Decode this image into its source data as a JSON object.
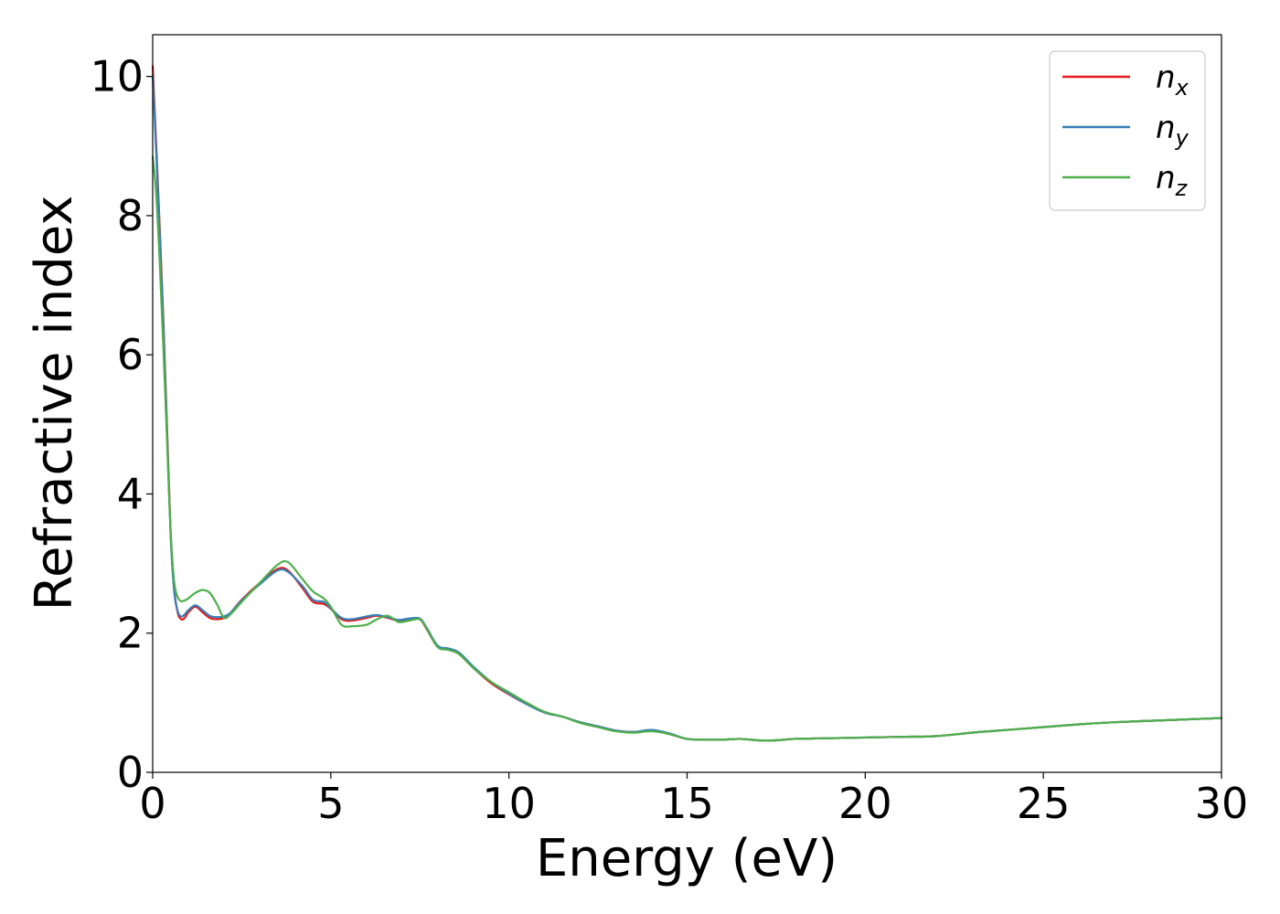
{
  "chart_data": {
    "type": "line",
    "xlabel": "Energy (eV)",
    "ylabel": "Refractive index",
    "xlim": [
      0,
      30
    ],
    "ylim": [
      0,
      10.6
    ],
    "xticks": [
      0,
      5,
      10,
      15,
      20,
      25,
      30
    ],
    "yticks": [
      0,
      2,
      4,
      6,
      8,
      10
    ],
    "grid": false,
    "legend_position": "top-right",
    "series": [
      {
        "name": "n",
        "subscript": "x",
        "color": "#e41a1c",
        "x": [
          0,
          0.1,
          0.2,
          0.3,
          0.4,
          0.5,
          0.6,
          0.7,
          0.8,
          0.9,
          1.0,
          1.2,
          1.4,
          1.6,
          1.8,
          2.0,
          2.2,
          2.5,
          3.0,
          3.5,
          3.8,
          4.2,
          4.5,
          4.8,
          5.0,
          5.3,
          5.6,
          6.0,
          6.3,
          6.6,
          6.9,
          7.2,
          7.5,
          7.7,
          8.0,
          8.3,
          8.6,
          9.0,
          9.5,
          10.0,
          10.5,
          11.0,
          11.5,
          12.0,
          12.5,
          13.0,
          13.5,
          14.0,
          14.5,
          15.0,
          15.5,
          16.0,
          16.5,
          17.0,
          17.5,
          18.0,
          19.0,
          20.0,
          21.0,
          22.0,
          23.0,
          24.0,
          25.0,
          26.0,
          27.0,
          28.0,
          29.0,
          30.0
        ],
        "y": [
          10.15,
          9.0,
          7.8,
          6.5,
          5.0,
          3.5,
          2.65,
          2.3,
          2.2,
          2.22,
          2.3,
          2.38,
          2.3,
          2.22,
          2.2,
          2.22,
          2.3,
          2.48,
          2.72,
          2.92,
          2.9,
          2.65,
          2.45,
          2.42,
          2.35,
          2.2,
          2.18,
          2.22,
          2.25,
          2.22,
          2.18,
          2.2,
          2.2,
          2.05,
          1.8,
          1.76,
          1.7,
          1.5,
          1.28,
          1.12,
          0.98,
          0.86,
          0.8,
          0.72,
          0.66,
          0.6,
          0.58,
          0.6,
          0.55,
          0.48,
          0.47,
          0.47,
          0.48,
          0.46,
          0.46,
          0.48,
          0.49,
          0.5,
          0.51,
          0.52,
          0.57,
          0.61,
          0.65,
          0.69,
          0.72,
          0.74,
          0.76,
          0.78
        ]
      },
      {
        "name": "n",
        "subscript": "y",
        "color": "#377eb8",
        "x": [
          0,
          0.1,
          0.2,
          0.3,
          0.4,
          0.5,
          0.6,
          0.7,
          0.8,
          0.9,
          1.0,
          1.2,
          1.4,
          1.6,
          1.8,
          2.0,
          2.2,
          2.5,
          3.0,
          3.5,
          3.8,
          4.2,
          4.5,
          4.8,
          5.0,
          5.3,
          5.6,
          6.0,
          6.3,
          6.6,
          6.9,
          7.2,
          7.5,
          7.7,
          8.0,
          8.3,
          8.6,
          9.0,
          9.5,
          10.0,
          10.5,
          11.0,
          11.5,
          12.0,
          12.5,
          13.0,
          13.5,
          14.0,
          14.5,
          15.0,
          15.5,
          16.0,
          16.5,
          17.0,
          17.5,
          18.0,
          19.0,
          20.0,
          21.0,
          22.0,
          23.0,
          24.0,
          25.0,
          26.0,
          27.0,
          28.0,
          29.0,
          30.0
        ],
        "y": [
          10.0,
          8.9,
          7.7,
          6.4,
          4.9,
          3.45,
          2.62,
          2.32,
          2.24,
          2.27,
          2.33,
          2.4,
          2.33,
          2.25,
          2.23,
          2.24,
          2.3,
          2.47,
          2.7,
          2.9,
          2.88,
          2.68,
          2.48,
          2.45,
          2.36,
          2.22,
          2.2,
          2.24,
          2.26,
          2.23,
          2.19,
          2.21,
          2.21,
          2.07,
          1.82,
          1.78,
          1.72,
          1.52,
          1.3,
          1.13,
          0.98,
          0.86,
          0.8,
          0.72,
          0.66,
          0.6,
          0.58,
          0.61,
          0.56,
          0.48,
          0.47,
          0.47,
          0.48,
          0.46,
          0.46,
          0.48,
          0.49,
          0.5,
          0.51,
          0.52,
          0.57,
          0.61,
          0.65,
          0.69,
          0.72,
          0.74,
          0.76,
          0.78
        ]
      },
      {
        "name": "n",
        "subscript": "z",
        "color": "#4daf4a",
        "x": [
          0,
          0.1,
          0.2,
          0.3,
          0.4,
          0.5,
          0.6,
          0.7,
          0.8,
          0.9,
          1.0,
          1.2,
          1.4,
          1.6,
          1.8,
          2.0,
          2.2,
          2.5,
          3.0,
          3.5,
          3.8,
          4.2,
          4.5,
          4.8,
          5.0,
          5.3,
          5.6,
          6.0,
          6.3,
          6.6,
          6.9,
          7.2,
          7.5,
          7.7,
          8.0,
          8.3,
          8.6,
          9.0,
          9.5,
          10.0,
          10.5,
          11.0,
          11.5,
          12.0,
          12.5,
          13.0,
          13.5,
          14.0,
          14.5,
          15.0,
          15.5,
          16.0,
          16.5,
          17.0,
          17.5,
          18.0,
          19.0,
          20.0,
          21.0,
          22.0,
          23.0,
          24.0,
          25.0,
          26.0,
          27.0,
          28.0,
          29.0,
          30.0
        ],
        "y": [
          8.85,
          8.3,
          7.3,
          6.1,
          4.8,
          3.5,
          2.75,
          2.52,
          2.46,
          2.47,
          2.5,
          2.58,
          2.62,
          2.58,
          2.42,
          2.22,
          2.28,
          2.45,
          2.72,
          2.98,
          3.02,
          2.78,
          2.6,
          2.5,
          2.38,
          2.12,
          2.1,
          2.12,
          2.2,
          2.25,
          2.16,
          2.18,
          2.2,
          2.06,
          1.8,
          1.76,
          1.7,
          1.5,
          1.3,
          1.15,
          1.0,
          0.87,
          0.8,
          0.71,
          0.65,
          0.59,
          0.57,
          0.59,
          0.55,
          0.48,
          0.47,
          0.47,
          0.48,
          0.46,
          0.46,
          0.48,
          0.49,
          0.5,
          0.51,
          0.52,
          0.57,
          0.61,
          0.65,
          0.69,
          0.72,
          0.74,
          0.76,
          0.78
        ]
      }
    ]
  }
}
